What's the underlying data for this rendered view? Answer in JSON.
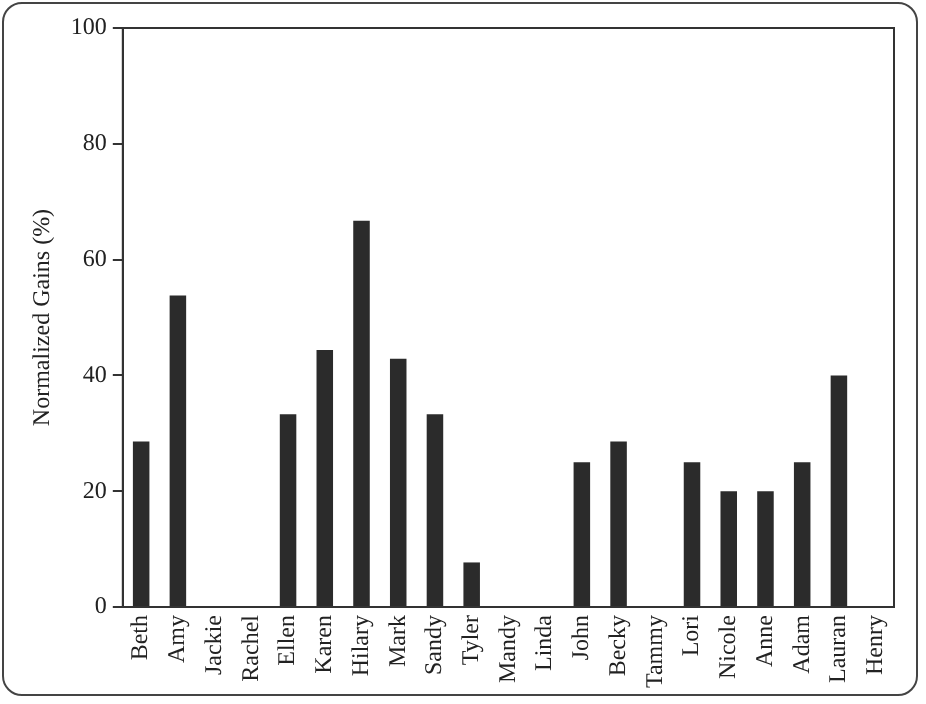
{
  "chart_data": {
    "type": "bar",
    "ylabel": "Normalized Gains (%)",
    "categories": [
      "Beth",
      "Amy",
      "Jackie",
      "Rachel",
      "Ellen",
      "Karen",
      "Hilary",
      "Mark",
      "Sandy",
      "Tyler",
      "Mandy",
      "Linda",
      "John",
      "Becky",
      "Tammy",
      "Lori",
      "Nicole",
      "Anne",
      "Adam",
      "Lauran",
      "Henry"
    ],
    "values": [
      28.6,
      53.8,
      0,
      0,
      33.3,
      44.4,
      66.7,
      42.9,
      33.3,
      7.7,
      0,
      0,
      25,
      28.6,
      0,
      25,
      20,
      20,
      25,
      40,
      0
    ],
    "color": "#2b2b2b",
    "ylim": [
      0,
      100
    ],
    "yticks": [
      0,
      20,
      40,
      60,
      80,
      100
    ],
    "grid": false,
    "legend": false
  }
}
